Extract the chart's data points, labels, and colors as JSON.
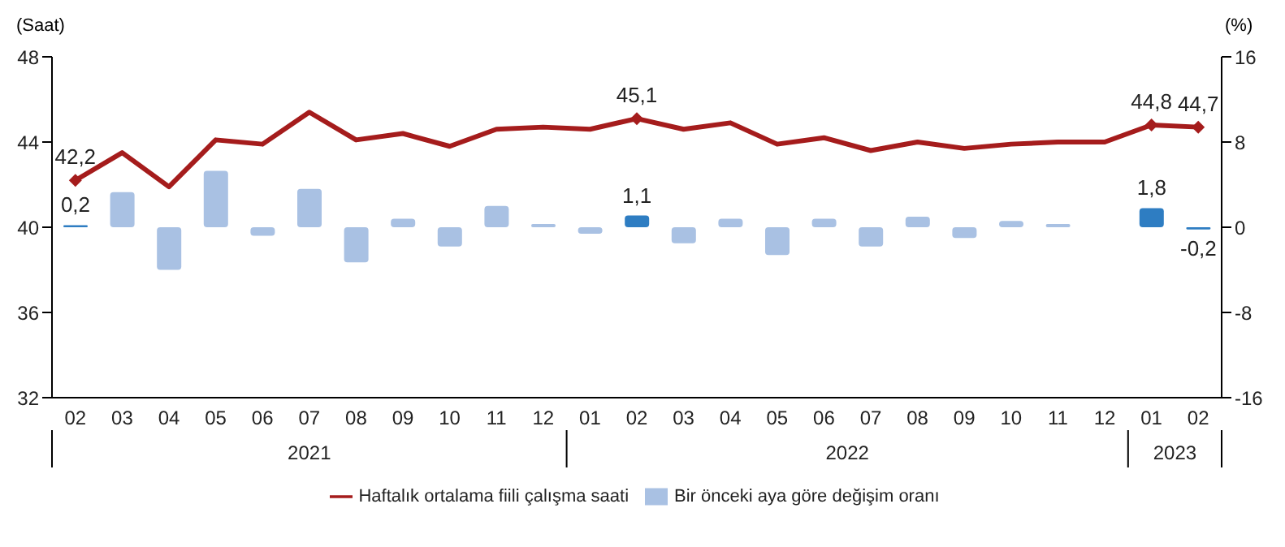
{
  "chart_data": {
    "type": "line",
    "categories": [
      "02",
      "03",
      "04",
      "05",
      "06",
      "07",
      "08",
      "09",
      "10",
      "11",
      "12",
      "01",
      "02",
      "03",
      "04",
      "05",
      "06",
      "07",
      "08",
      "09",
      "10",
      "11",
      "12",
      "01",
      "02"
    ],
    "ylabel": "(Saat)",
    "y2label": "(%)",
    "ylim": [
      32,
      48
    ],
    "yticks": [
      32,
      36,
      40,
      44,
      48
    ],
    "y2lim": [
      -16,
      16
    ],
    "y2ticks": [
      -16,
      -8,
      0,
      8,
      16
    ],
    "series": [
      {
        "name": "Haftalık ortalama fiili çalışma saati",
        "color": "#a51c1c",
        "values": [
          42.2,
          43.5,
          41.9,
          44.1,
          43.9,
          45.4,
          44.1,
          44.4,
          43.8,
          44.6,
          44.7,
          44.6,
          45.1,
          44.6,
          44.9,
          43.9,
          44.2,
          43.6,
          44.0,
          43.7,
          43.9,
          44.0,
          44.0,
          44.8,
          44.7
        ],
        "value_labels": [
          "42,2",
          null,
          null,
          null,
          null,
          null,
          null,
          null,
          null,
          null,
          null,
          null,
          "45,1",
          null,
          null,
          null,
          null,
          null,
          null,
          null,
          null,
          null,
          null,
          "44,8",
          "44,7"
        ]
      },
      {
        "name": "Bir önceki aya göre değişim oranı",
        "type": "bar",
        "axis": "y2",
        "color": "#a9c1e3",
        "colors": [
          "#2e7dc2",
          "#a9c1e3",
          "#a9c1e3",
          "#a9c1e3",
          "#a9c1e3",
          "#a9c1e3",
          "#a9c1e3",
          "#a9c1e3",
          "#a9c1e3",
          "#a9c1e3",
          "#a9c1e3",
          "#a9c1e3",
          "#2e7dc2",
          "#a9c1e3",
          "#a9c1e3",
          "#a9c1e3",
          "#a9c1e3",
          "#a9c1e3",
          "#a9c1e3",
          "#a9c1e3",
          "#a9c1e3",
          "#a9c1e3",
          "#a9c1e3",
          "#2e7dc2",
          "#2e7dc2"
        ],
        "values": [
          0.2,
          3.3,
          -4.0,
          5.3,
          -0.8,
          3.6,
          -3.3,
          0.8,
          -1.8,
          2.0,
          0.3,
          -0.6,
          1.1,
          -1.5,
          0.8,
          -2.6,
          0.8,
          -1.8,
          1.0,
          -1.0,
          0.6,
          0.3,
          0.0,
          1.8,
          -0.2
        ],
        "value_labels": [
          "0,2",
          null,
          null,
          null,
          null,
          null,
          null,
          null,
          null,
          null,
          null,
          null,
          "1,1",
          null,
          null,
          null,
          null,
          null,
          null,
          null,
          null,
          null,
          null,
          "1,8",
          "-0,2"
        ]
      }
    ],
    "annotations": [
      "2021",
      "2022",
      "2023"
    ],
    "legend": "bottom",
    "grid": false
  }
}
